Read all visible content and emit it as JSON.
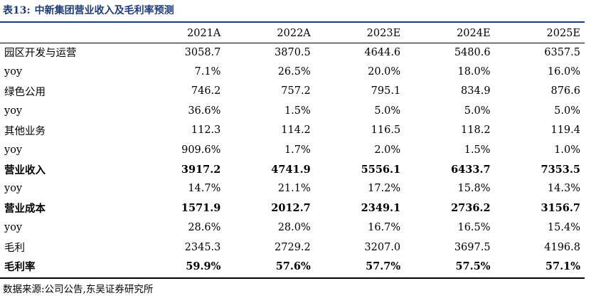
{
  "table": {
    "title_label": "表13:",
    "title_text": "中新集团营业收入及毛利率预测",
    "columns": [
      "2021A",
      "2022A",
      "2023E",
      "2024E",
      "2025E"
    ],
    "rows": [
      {
        "label": "园区开发与运营",
        "values": [
          "3058.7",
          "3870.5",
          "4644.6",
          "5480.6",
          "6357.5"
        ],
        "bold": false
      },
      {
        "label": "yoy",
        "values": [
          "7.1%",
          "26.5%",
          "20.0%",
          "18.0%",
          "16.0%"
        ],
        "bold": false
      },
      {
        "label": "绿色公用",
        "values": [
          "746.2",
          "757.2",
          "795.1",
          "834.9",
          "876.6"
        ],
        "bold": false
      },
      {
        "label": "yoy",
        "values": [
          "36.6%",
          "1.5%",
          "5.0%",
          "5.0%",
          "5.0%"
        ],
        "bold": false
      },
      {
        "label": "其他业务",
        "values": [
          "112.3",
          "114.2",
          "116.5",
          "118.2",
          "119.4"
        ],
        "bold": false
      },
      {
        "label": "yoy",
        "values": [
          "909.6%",
          "1.7%",
          "2.0%",
          "1.5%",
          "1.0%"
        ],
        "bold": false
      },
      {
        "label": "营业收入",
        "values": [
          "3917.2",
          "4741.9",
          "5556.1",
          "6433.7",
          "7353.5"
        ],
        "bold": true
      },
      {
        "label": "yoy",
        "values": [
          "14.7%",
          "21.1%",
          "17.2%",
          "15.8%",
          "14.3%"
        ],
        "bold": false
      },
      {
        "label": "营业成本",
        "values": [
          "1571.9",
          "2012.7",
          "2349.1",
          "2736.2",
          "3156.7"
        ],
        "bold": true
      },
      {
        "label": "yoy",
        "values": [
          "28.6%",
          "28.0%",
          "16.7%",
          "16.5%",
          "15.4%"
        ],
        "bold": false
      },
      {
        "label": "毛利",
        "values": [
          "2345.3",
          "2729.2",
          "3207.0",
          "3697.5",
          "4196.8"
        ],
        "bold": false
      },
      {
        "label": "毛利率",
        "values": [
          "59.9%",
          "57.6%",
          "57.7%",
          "57.5%",
          "57.1%"
        ],
        "bold": true
      }
    ],
    "source": "数据来源:公司公告,东吴证券研究所"
  },
  "colors": {
    "title": "#1f3c7a",
    "rule_top": "#1f3c7a",
    "text": "#000000",
    "background": "#ffffff"
  }
}
